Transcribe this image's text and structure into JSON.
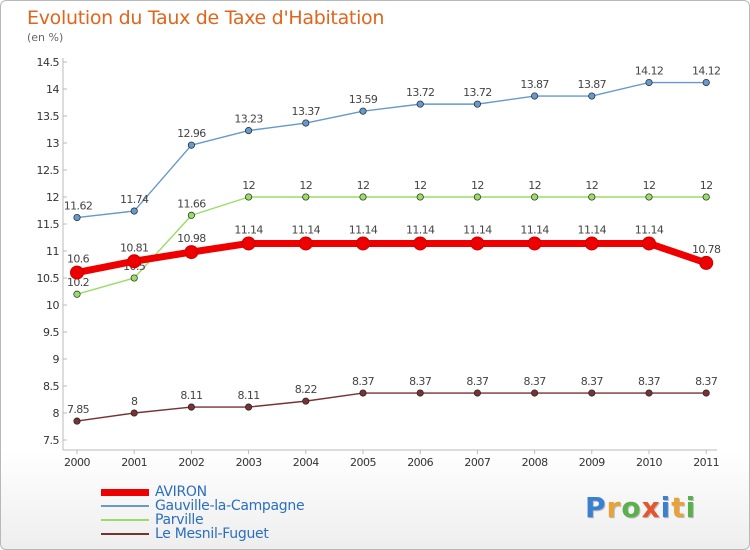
{
  "title": "Evolution du Taux de Taxe d'Habitation",
  "unit": "(en %)",
  "logo_text": "Proxiti",
  "chart_data": {
    "type": "line",
    "title": "Evolution du Taux de Taxe d'Habitation",
    "ylabel": "(en %)",
    "x": [
      "2000",
      "2001",
      "2002",
      "2003",
      "2004",
      "2005",
      "2006",
      "2007",
      "2008",
      "2009",
      "2010",
      "2011"
    ],
    "yticks": [
      "7.5",
      "8",
      "8.5",
      "9",
      "9.5",
      "10",
      "10.5",
      "11",
      "11.5",
      "12",
      "12.5",
      "13",
      "13.5",
      "14",
      "14.5"
    ],
    "ylim": [
      7.5,
      14.5
    ],
    "grid": false,
    "legend_position": "bottom-left",
    "series": [
      {
        "name": "Gauville-la-Campagne",
        "color": "#6699cc",
        "values": [
          11.62,
          11.74,
          12.96,
          13.23,
          13.37,
          13.59,
          13.72,
          13.72,
          13.87,
          13.87,
          14.12,
          14.12
        ],
        "labels": [
          "11.62",
          "11.74",
          "12.96",
          "13.23",
          "13.37",
          "13.59",
          "13.72",
          "13.72",
          "13.87",
          "13.87",
          "14.12",
          "14.12"
        ]
      },
      {
        "name": "Parville",
        "color": "#99dd66",
        "values": [
          10.2,
          10.5,
          11.66,
          12,
          12,
          12,
          12,
          12,
          12,
          12,
          12,
          12
        ],
        "labels": [
          "10.2",
          "10.5",
          "11.66",
          "12",
          "12",
          "12",
          "12",
          "12",
          "12",
          "12",
          "12",
          "12"
        ]
      },
      {
        "name": "Le Mesnil-Fuguet",
        "color": "#773333",
        "values": [
          7.85,
          8,
          8.11,
          8.11,
          8.22,
          8.37,
          8.37,
          8.37,
          8.37,
          8.37,
          8.37,
          8.37
        ],
        "labels": [
          "7.85",
          "8",
          "8.11",
          "8.11",
          "8.22",
          "8.37",
          "8.37",
          "8.37",
          "8.37",
          "8.37",
          "8.37",
          "8.37"
        ]
      },
      {
        "name": "AVIRON",
        "color": "#ee0000",
        "emphasis": true,
        "values": [
          10.6,
          10.81,
          10.98,
          11.14,
          11.14,
          11.14,
          11.14,
          11.14,
          11.14,
          11.14,
          11.14,
          10.78
        ],
        "labels": [
          "10.6",
          "10.81",
          "10.98",
          "11.14",
          "11.14",
          "11.14",
          "11.14",
          "11.14",
          "11.14",
          "11.14",
          "11.14",
          "10.78"
        ]
      }
    ],
    "legend": [
      "AVIRON",
      "Gauville-la-Campagne",
      "Parville",
      "Le Mesnil-Fuguet"
    ]
  }
}
